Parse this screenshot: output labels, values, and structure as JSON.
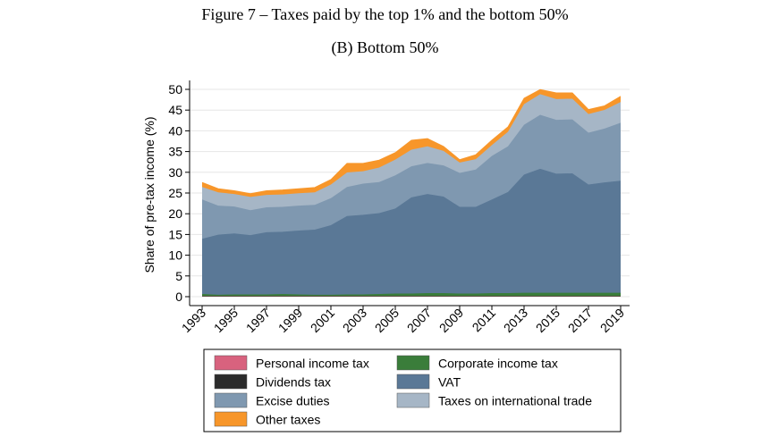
{
  "figure_title": "Figure 7 – Taxes paid by the top 1% and the bottom 50%",
  "panel_title": "(B) Bottom 50%",
  "chart_data": {
    "type": "area",
    "stacked": true,
    "title": "(B) Bottom 50%",
    "xlabel": "",
    "ylabel": "Share of pre-tax income (%)",
    "ylim": [
      0,
      50
    ],
    "yticks": [
      0,
      5,
      10,
      15,
      20,
      25,
      30,
      35,
      40,
      45,
      50
    ],
    "xlim": [
      1993,
      2019
    ],
    "xticks": [
      "1993",
      "1995",
      "1997",
      "1999",
      "2001",
      "2003",
      "2005",
      "2007",
      "2009",
      "2011",
      "2013",
      "2015",
      "2017",
      "2019"
    ],
    "x": [
      1993,
      1994,
      1995,
      1996,
      1997,
      1998,
      1999,
      2000,
      2001,
      2002,
      2003,
      2004,
      2005,
      2006,
      2007,
      2008,
      2009,
      2010,
      2011,
      2012,
      2013,
      2014,
      2015,
      2016,
      2017,
      2018,
      2019
    ],
    "grid": true,
    "legend_position": "bottom",
    "series": [
      {
        "name": "Personal income tax",
        "color": "#d8627e",
        "values": [
          0.1,
          0.1,
          0.1,
          0.1,
          0.1,
          0.1,
          0.1,
          0.1,
          0.1,
          0.1,
          0.1,
          0.1,
          0.1,
          0.1,
          0.1,
          0.1,
          0.1,
          0.1,
          0.1,
          0.1,
          0.1,
          0.1,
          0.1,
          0.1,
          0.1,
          0.1,
          0.1
        ]
      },
      {
        "name": "Dividends tax",
        "color": "#2b2b2b",
        "values": [
          0.05,
          0.05,
          0.05,
          0.05,
          0.05,
          0.05,
          0.05,
          0.05,
          0.05,
          0.05,
          0.05,
          0.05,
          0.05,
          0.05,
          0.05,
          0.05,
          0.05,
          0.05,
          0.05,
          0.05,
          0.05,
          0.05,
          0.05,
          0.05,
          0.05,
          0.05,
          0.05
        ]
      },
      {
        "name": "Corporate income tax",
        "color": "#3a7d3a",
        "values": [
          0.5,
          0.3,
          0.4,
          0.4,
          0.4,
          0.5,
          0.4,
          0.3,
          0.3,
          0.4,
          0.4,
          0.5,
          0.6,
          0.6,
          0.7,
          0.7,
          0.6,
          0.6,
          0.7,
          0.7,
          0.8,
          0.8,
          0.8,
          0.8,
          0.8,
          0.8,
          0.8
        ]
      },
      {
        "name": "VAT",
        "color": "#5a7896",
        "values": [
          13.3,
          14.5,
          14.7,
          14.3,
          15.0,
          15.0,
          15.4,
          15.7,
          16.8,
          18.9,
          19.2,
          19.5,
          20.5,
          23.2,
          23.9,
          23.3,
          20.9,
          20.9,
          22.6,
          24.4,
          28.5,
          29.9,
          28.7,
          28.8,
          26.1,
          26.6,
          27.0
        ]
      },
      {
        "name": "Excise duties",
        "color": "#7f98b0",
        "values": [
          9.5,
          7.0,
          6.5,
          6.0,
          6.0,
          6.0,
          6.0,
          6.0,
          6.5,
          7.0,
          7.5,
          7.5,
          8.0,
          7.5,
          7.5,
          7.5,
          8.2,
          9.0,
          10.5,
          11.0,
          12.0,
          13.0,
          13.0,
          13.0,
          12.5,
          13.0,
          14.0
        ]
      },
      {
        "name": "Taxes on international trade",
        "color": "#a6b6c6",
        "values": [
          3.0,
          3.2,
          3.0,
          3.2,
          3.0,
          3.0,
          3.0,
          3.0,
          3.3,
          3.5,
          3.0,
          3.5,
          3.8,
          4.0,
          4.0,
          3.5,
          2.5,
          2.5,
          2.6,
          3.5,
          5.0,
          5.0,
          5.0,
          5.0,
          4.5,
          4.5,
          5.0
        ]
      },
      {
        "name": "Other taxes",
        "color": "#f7962a",
        "values": [
          1.1,
          0.9,
          0.8,
          0.8,
          1.0,
          1.1,
          1.1,
          1.2,
          1.2,
          2.2,
          1.9,
          1.8,
          1.7,
          2.3,
          1.9,
          1.1,
          0.7,
          1.1,
          1.2,
          1.2,
          1.4,
          1.1,
          1.5,
          1.4,
          1.1,
          1.0,
          1.4
        ]
      }
    ]
  }
}
